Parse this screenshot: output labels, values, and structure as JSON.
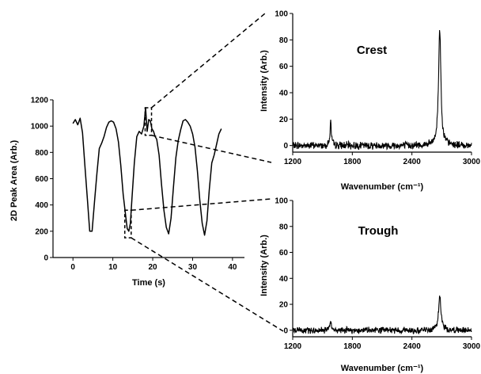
{
  "chart_data": [
    {
      "type": "line",
      "xlabel": "Time (s)",
      "ylabel": "2D Peak Area (Arb.)",
      "xlim": [
        -5,
        43
      ],
      "ylim": [
        0,
        1200
      ],
      "x_ticks": [
        "0",
        "10",
        "20",
        "30",
        "40"
      ],
      "y_ticks": [
        "0",
        "200",
        "400",
        "600",
        "800",
        "1000",
        "1200"
      ],
      "series": [
        {
          "x": [
            0,
            0.6,
            1.2,
            1.8,
            2.4,
            3.0,
            3.6,
            4.2,
            4.8,
            5.4,
            6.0,
            6.6,
            7.2,
            7.8,
            8.4,
            9.0,
            9.6,
            10.2,
            10.8,
            11.4,
            12.0,
            12.6,
            13.2,
            13.6,
            14.0,
            14.4,
            14.8,
            15.4,
            16.0,
            16.6,
            17.2,
            17.8,
            18.2,
            18.6,
            19.0,
            19.4,
            19.8,
            20.2,
            20.6,
            21.0,
            21.6,
            22.2,
            22.8,
            23.4,
            24.0,
            24.6,
            25.2,
            25.8,
            26.4,
            27.0,
            27.6,
            28.2,
            28.8,
            29.4,
            30.0,
            30.6,
            31.2,
            31.8,
            32.4,
            33.0,
            33.6,
            34.2,
            34.8,
            35.4,
            36.0,
            36.6,
            37.2
          ],
          "y": [
            1020,
            1050,
            1010,
            1060,
            950,
            700,
            450,
            200,
            200,
            420,
            640,
            830,
            870,
            920,
            990,
            1030,
            1040,
            1030,
            980,
            880,
            700,
            480,
            320,
            220,
            200,
            260,
            450,
            720,
            920,
            960,
            940,
            1000,
            1140,
            960,
            1050,
            1040,
            980,
            960,
            920,
            900,
            780,
            560,
            360,
            230,
            180,
            300,
            540,
            760,
            890,
            970,
            1040,
            1050,
            1030,
            1000,
            940,
            840,
            660,
            440,
            260,
            170,
            280,
            520,
            720,
            780,
            860,
            940,
            980
          ]
        }
      ],
      "zoom_boxes": [
        {
          "name": "crest",
          "x": [
            18.1,
            19.7
          ],
          "y": [
            930,
            1140
          ]
        },
        {
          "name": "trough",
          "x": [
            13.0,
            14.6
          ],
          "y": [
            150,
            360
          ]
        }
      ]
    },
    {
      "type": "line",
      "title": "Crest",
      "xlabel": "Wavenumber (cm⁻¹)",
      "ylabel": "Intensity (Arb.)",
      "xlim": [
        1200,
        3000
      ],
      "ylim": [
        -5,
        100
      ],
      "x_ticks": [
        "1200",
        "1800",
        "2400",
        "3000"
      ],
      "y_ticks": [
        "0",
        "20",
        "40",
        "60",
        "80",
        "100"
      ],
      "noise_amplitude": 2.2,
      "peaks": [
        {
          "center": 1582,
          "height": 18,
          "width": 8
        },
        {
          "center": 2680,
          "height": 88,
          "width": 14
        }
      ]
    },
    {
      "type": "line",
      "title": "Trough",
      "xlabel": "Wavenumber (cm⁻¹)",
      "ylabel": "Intensity (Arb.)",
      "xlim": [
        1200,
        3000
      ],
      "ylim": [
        -5,
        100
      ],
      "x_ticks": [
        "1200",
        "1800",
        "2400",
        "3000"
      ],
      "y_ticks": [
        "0",
        "20",
        "40",
        "60",
        "80",
        "100"
      ],
      "noise_amplitude": 2.0,
      "peaks": [
        {
          "center": 1582,
          "height": 6,
          "width": 9
        },
        {
          "center": 2680,
          "height": 26,
          "width": 15
        }
      ]
    }
  ]
}
